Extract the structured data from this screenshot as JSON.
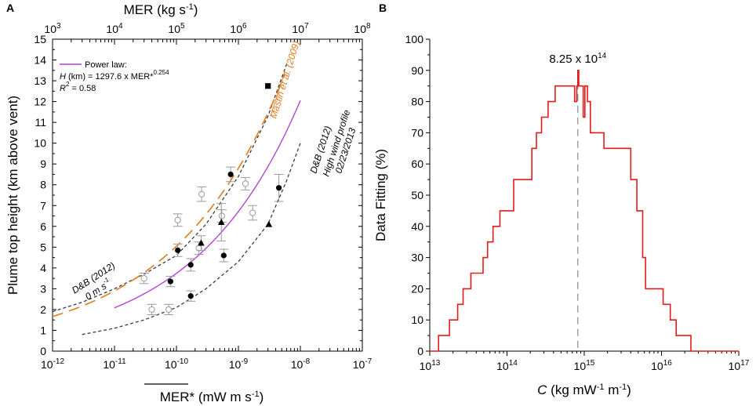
{
  "chart_data": [
    {
      "panel": "A",
      "type": "scatter",
      "xlabel_bottom": "MER* (mW m s-1)",
      "xlabel_top": "MER (kg s-1)",
      "ylabel": "Plume top height (km above vent)",
      "x_scale": "log",
      "xlim_bottom": [
        1e-12,
        1e-07
      ],
      "xlim_top": [
        1000,
        100000000
      ],
      "ylim": [
        0,
        15
      ],
      "x_ticks_bottom": [
        {
          "v": 1e-12,
          "base": "10",
          "exp": "-12"
        },
        {
          "v": 1e-11,
          "base": "10",
          "exp": "-11"
        },
        {
          "v": 1e-10,
          "base": "10",
          "exp": "-10"
        },
        {
          "v": 1e-09,
          "base": "10",
          "exp": "-9"
        },
        {
          "v": 1e-08,
          "base": "10",
          "exp": "-8"
        },
        {
          "v": 1e-07,
          "base": "10",
          "exp": "-7"
        }
      ],
      "x_ticks_top": [
        {
          "v": 1000,
          "base": "10",
          "exp": "3"
        },
        {
          "v": 10000,
          "base": "10",
          "exp": "4"
        },
        {
          "v": 100000,
          "base": "10",
          "exp": "5"
        },
        {
          "v": 1000000,
          "base": "10",
          "exp": "6"
        },
        {
          "v": 10000000,
          "base": "10",
          "exp": "7"
        },
        {
          "v": 100000000,
          "base": "10",
          "exp": "8"
        }
      ],
      "y_ticks": [
        0,
        1,
        2,
        3,
        4,
        5,
        6,
        7,
        8,
        9,
        10,
        11,
        12,
        13,
        14,
        15
      ],
      "legend": {
        "line_label": "Power law:",
        "eq_var": "H",
        "eq_text": " (km) = 1297.6 x MER*",
        "eq_exp": "0.254",
        "r2_var": "R",
        "r2_exp": "2",
        "r2_text": " = 0.58"
      },
      "annotations": {
        "mastin": "Mastin et al. (2009)",
        "db_zero_1": "D&B (2012)",
        "db_zero_2": "0 m s-1",
        "db_high_1": "D&B (2012)",
        "db_high_2": "High wind profile",
        "db_high_3": "02/23/2013"
      },
      "curves": {
        "power_law": {
          "color": "#b144d6",
          "coef": 1297.6,
          "exp": 0.254,
          "x_range": [
            1e-11,
            1e-08
          ]
        },
        "mastin": {
          "color": "#e07b20",
          "coef": 1297.6,
          "exp": 0.241,
          "x_range": [
            1e-12,
            6e-09
          ]
        },
        "db_zero": {
          "color": "#3a3a3a",
          "points": [
            [
              1e-12,
              1.9
            ],
            [
              3e-12,
              2.35
            ],
            [
              1e-11,
              3.0
            ],
            [
              3e-11,
              3.7
            ],
            [
              1e-10,
              4.6
            ],
            [
              3e-10,
              6.1
            ],
            [
              1e-09,
              8.4
            ],
            [
              3e-09,
              11.3
            ],
            [
              6e-09,
              13.8
            ]
          ]
        },
        "db_high": {
          "color": "#3a3a3a",
          "points": [
            [
              3e-12,
              0.8
            ],
            [
              1e-11,
              1.1
            ],
            [
              3e-11,
              1.5
            ],
            [
              1e-10,
              2.1
            ],
            [
              3e-10,
              3.0
            ],
            [
              1e-09,
              4.3
            ],
            [
              3e-09,
              6.1
            ],
            [
              6e-09,
              8.2
            ],
            [
              1e-08,
              10.0
            ]
          ]
        }
      },
      "series": [
        {
          "name": "filled circles",
          "marker": "circle-filled",
          "points": [
            {
              "x": 8e-11,
              "y": 3.35,
              "err": 0.25
            },
            {
              "x": 1.05e-10,
              "y": 4.85,
              "err": 0.3
            },
            {
              "x": 1.7e-10,
              "y": 2.65,
              "err": 0.25
            },
            {
              "x": 1.7e-10,
              "y": 4.15,
              "err": 0.3
            },
            {
              "x": 5.8e-10,
              "y": 4.6,
              "err": 0.3
            },
            {
              "x": 7.5e-10,
              "y": 8.5,
              "err": 0.35
            },
            {
              "x": 4.5e-09,
              "y": 7.85,
              "err": 0.65
            }
          ]
        },
        {
          "name": "open circles",
          "marker": "circle-open",
          "points": [
            {
              "x": 3e-11,
              "y": 3.5,
              "err": 0.25
            },
            {
              "x": 4e-11,
              "y": 2.0,
              "err": 0.25
            },
            {
              "x": 7.5e-11,
              "y": 2.0,
              "err": 0.25
            },
            {
              "x": 1.05e-10,
              "y": 6.3,
              "err": 0.3
            },
            {
              "x": 2.3e-10,
              "y": 4.95,
              "err": 0.3
            },
            {
              "x": 2.55e-10,
              "y": 7.55,
              "err": 0.35
            },
            {
              "x": 5.4e-10,
              "y": 6.5,
              "err": 0.3
            },
            {
              "x": 1.3e-09,
              "y": 8.05,
              "err": 0.3
            },
            {
              "x": 1.7e-09,
              "y": 6.65,
              "err": 0.35
            }
          ]
        },
        {
          "name": "triangles",
          "marker": "triangle-filled",
          "points": [
            {
              "x": 2.5e-10,
              "y": 5.2,
              "err": 0.35
            },
            {
              "x": 5.3e-10,
              "y": 6.2,
              "err": 0.9
            },
            {
              "x": 3.1e-09,
              "y": 6.1,
              "err": 0
            }
          ]
        },
        {
          "name": "square",
          "marker": "square-filled",
          "points": [
            {
              "x": 3e-09,
              "y": 12.75,
              "err": 0
            }
          ]
        }
      ]
    },
    {
      "panel": "B",
      "type": "line",
      "xlabel_var": "C",
      "xlabel_text": " (kg mW-1 m-1)",
      "ylabel": "Data Fitting (%)",
      "x_scale": "log",
      "xlim": [
        10000000000000.0,
        1e+17
      ],
      "ylim": [
        0,
        100
      ],
      "x_ticks": [
        {
          "v": 10000000000000.0,
          "base": "10",
          "exp": "13"
        },
        {
          "v": 100000000000000.0,
          "base": "10",
          "exp": "14"
        },
        {
          "v": 1000000000000000.0,
          "base": "10",
          "exp": "15"
        },
        {
          "v": 1e+16,
          "base": "10",
          "exp": "16"
        },
        {
          "v": 1e+17,
          "base": "10",
          "exp": "17"
        }
      ],
      "y_ticks": [
        0,
        10,
        20,
        30,
        40,
        50,
        60,
        70,
        80,
        90,
        100
      ],
      "peak_label": "8.25 x 10",
      "peak_label_exp": "14",
      "peak_x": 825000000000000.0,
      "peak_y": 90,
      "line_color": "#e41a1c",
      "x": [
        10000000000000.0,
        13000000000000.0,
        18000000000000.0,
        23000000000000.0,
        27000000000000.0,
        34000000000000.0,
        49000000000000.0,
        56000000000000.0,
        66000000000000.0,
        81000000000000.0,
        122000000000000.0,
        210000000000000.0,
        240000000000000.0,
        280000000000000.0,
        340000000000000.0,
        420000000000000.0,
        550000000000000.0,
        750000000000000.0,
        800000000000000.0,
        825000000000000.0,
        850000000000000.0,
        970000000000000.0,
        1020000000000000.0,
        1100000000000000.0,
        1200000000000000.0,
        1400000000000000.0,
        1800000000000000.0,
        3000000000000000.0,
        4000000000000000.0,
        4800000000000000.0,
        5700000000000000.0,
        6200000000000000.0,
        1.05e+16,
        1.3e+16,
        1.55e+16,
        1.8e+16,
        2.4e+16,
        2.8e+16,
        1e+17
      ],
      "values": [
        0,
        5,
        10,
        15,
        20,
        25,
        30,
        35,
        40,
        45,
        55,
        65,
        70,
        75,
        80,
        85,
        85,
        80,
        85,
        90,
        85,
        75,
        85,
        80,
        70,
        70,
        65,
        65,
        55,
        45,
        30,
        20,
        15,
        10,
        5,
        5,
        0,
        0,
        0
      ]
    }
  ]
}
